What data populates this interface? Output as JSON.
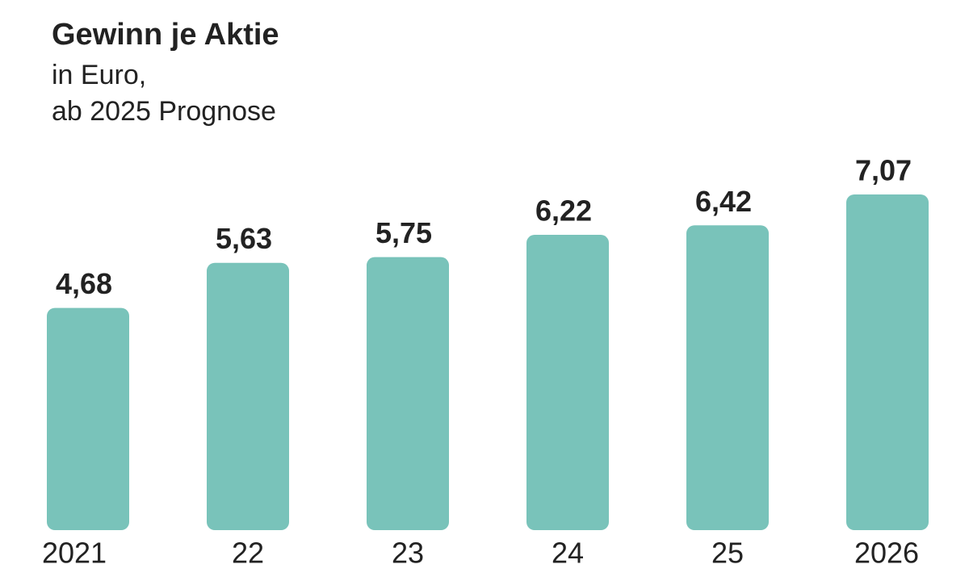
{
  "chart_data": {
    "type": "bar",
    "title": "Gewinn je Aktie",
    "subtitle": [
      "in Euro,",
      "ab 2025 Prognose"
    ],
    "categories": [
      "2021",
      "22",
      "23",
      "24",
      "25",
      "2026"
    ],
    "values": [
      4.68,
      5.63,
      5.75,
      6.22,
      6.42,
      7.07
    ],
    "value_labels": [
      "4,68",
      "5,63",
      "5,75",
      "6,22",
      "6,42",
      "7,07"
    ],
    "color": "#79c3ba"
  }
}
